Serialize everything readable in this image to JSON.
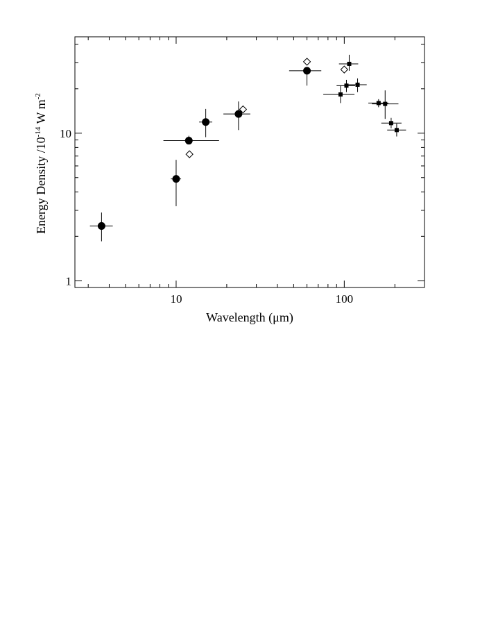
{
  "chart_data": {
    "type": "scatter",
    "title": "",
    "xlabel": "Wavelength (μm)",
    "ylabel": {
      "prefix": "Energy Density /10",
      "exp": "-14",
      "mid": " W m",
      "exp2": "-2"
    },
    "xscale": "log",
    "yscale": "log",
    "xlim": [
      2.5,
      300
    ],
    "ylim": [
      0.9,
      45
    ],
    "grid": false,
    "legend": "none",
    "x_tick_labels": [
      {
        "value": 10,
        "label": "10"
      },
      {
        "value": 100,
        "label": "100"
      }
    ],
    "y_tick_labels": [
      {
        "value": 1,
        "label": "1"
      },
      {
        "value": 10,
        "label": "10"
      }
    ],
    "series": [
      {
        "marker": "circle",
        "points": [
          {
            "x": 3.6,
            "y": 2.35,
            "xerr": [
              3.07,
              4.2
            ],
            "yerr": [
              1.85,
              2.9
            ]
          },
          {
            "x": 10.0,
            "y": 4.9,
            "xerr": [
              9.3,
              10.7
            ],
            "yerr": [
              3.2,
              6.6
            ]
          },
          {
            "x": 11.9,
            "y": 8.9,
            "xerr": [
              8.4,
              18.0
            ],
            "yerr": [
              8.4,
              9.6
            ]
          },
          {
            "x": 15.0,
            "y": 11.9,
            "xerr": [
              13.7,
              16.4
            ],
            "yerr": [
              9.4,
              14.6
            ]
          },
          {
            "x": 23.5,
            "y": 13.5,
            "xerr": [
              19.1,
              27.6
            ],
            "yerr": [
              10.5,
              16.4
            ]
          },
          {
            "x": 60.0,
            "y": 26.5,
            "xerr": [
              47.0,
              73.0
            ],
            "yerr": [
              21.0,
              28.0
            ]
          }
        ]
      },
      {
        "marker": "diamond-open",
        "points": [
          {
            "x": 12.0,
            "y": 7.2
          },
          {
            "x": 25.0,
            "y": 14.5
          },
          {
            "x": 60.0,
            "y": 30.5
          },
          {
            "x": 100.0,
            "y": 27.0
          }
        ]
      },
      {
        "marker": "square",
        "points": [
          {
            "x": 95.0,
            "y": 18.3,
            "xerr": [
              75.0,
              115.0
            ],
            "yerr": [
              16.0,
              21.0
            ]
          },
          {
            "x": 103.0,
            "y": 21.0,
            "xerr": [
              90.0,
              116.0
            ],
            "yerr": [
              19.0,
              23.0
            ]
          },
          {
            "x": 107.0,
            "y": 29.5,
            "xerr": [
              93.0,
              121.0
            ],
            "yerr": [
              26.5,
              34.0
            ]
          },
          {
            "x": 120.0,
            "y": 21.3,
            "xerr": [
              104.0,
              136.0
            ],
            "yerr": [
              19.0,
              23.5
            ]
          },
          {
            "x": 160.0,
            "y": 16.0,
            "xerr": [
              139.0,
              183.0
            ],
            "yerr": [
              15.0,
              17.0
            ]
          },
          {
            "x": 175.0,
            "y": 15.8,
            "xerr": [
              146.0,
              210.0
            ],
            "yerr": [
              12.5,
              19.5
            ]
          },
          {
            "x": 190.0,
            "y": 11.7,
            "xerr": [
              166.0,
              219.0
            ],
            "yerr": [
              10.8,
              12.7
            ]
          },
          {
            "x": 205.0,
            "y": 10.5,
            "xerr": [
              180.0,
              233.0
            ],
            "yerr": [
              9.5,
              11.6
            ]
          }
        ]
      }
    ]
  }
}
